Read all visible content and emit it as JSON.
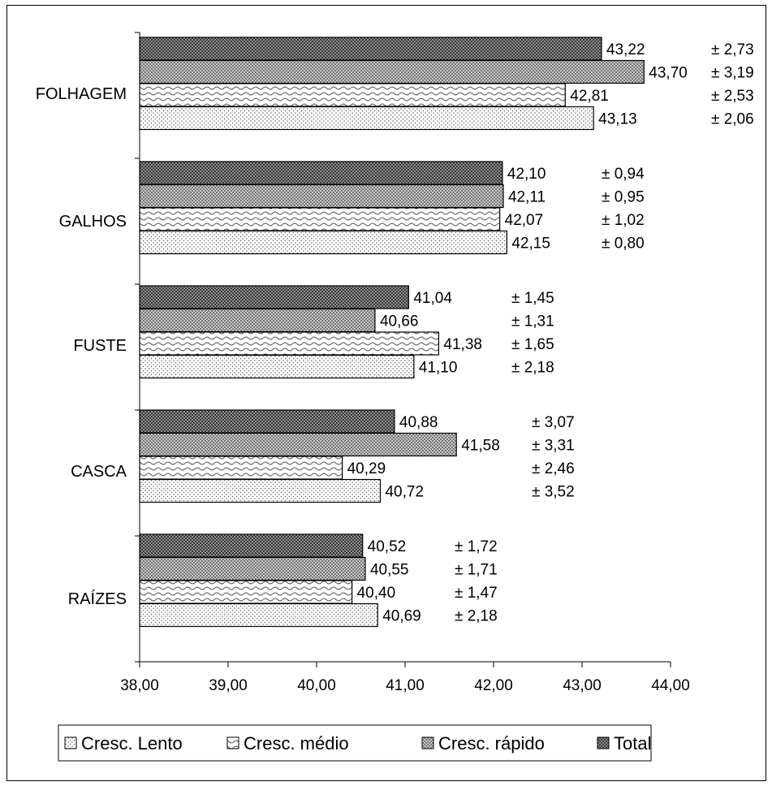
{
  "chart_data": {
    "type": "bar",
    "orientation": "horizontal",
    "title": "",
    "xlabel": "",
    "ylabel": "",
    "xlim": [
      38,
      44
    ],
    "x_ticks": [
      "38,00",
      "39,00",
      "40,00",
      "41,00",
      "42,00",
      "43,00",
      "44,00"
    ],
    "categories": [
      "FOLHAGEM",
      "GALHOS",
      "FUSTE",
      "CASCA",
      "RAÍZES"
    ],
    "series": [
      {
        "name": "Total",
        "values": [
          43.22,
          42.1,
          41.04,
          40.88,
          40.52
        ],
        "labels": [
          "43,22",
          "42,10",
          "41,04",
          "40,88",
          "40,52"
        ],
        "errors": [
          "± 2,73",
          "± 0,94",
          "± 1,45",
          "± 3,07",
          "± 1,72"
        ],
        "pattern": "dark-checker"
      },
      {
        "name": "Cresc. rápido",
        "values": [
          43.7,
          42.11,
          40.66,
          41.58,
          40.55
        ],
        "labels": [
          "43,70",
          "42,11",
          "40,66",
          "41,58",
          "40,55"
        ],
        "errors": [
          "± 3,19",
          "± 0,95",
          "± 1,31",
          "± 3,31",
          "± 1,71"
        ],
        "pattern": "gray-checker"
      },
      {
        "name": "Cresc. médio",
        "values": [
          42.81,
          42.07,
          41.38,
          40.29,
          40.4
        ],
        "labels": [
          "42,81",
          "42,07",
          "41,38",
          "40,29",
          "40,40"
        ],
        "errors": [
          "± 2,53",
          "± 1,02",
          "± 1,65",
          "± 2,46",
          "± 1,47"
        ],
        "pattern": "wave"
      },
      {
        "name": "Cresc. Lento",
        "values": [
          43.13,
          42.15,
          41.1,
          40.72,
          40.69
        ],
        "labels": [
          "43,13",
          "42,15",
          "41,10",
          "40,72",
          "40,69"
        ],
        "errors": [
          "± 2,06",
          "± 0,80",
          "± 2,18",
          "± 3,52",
          "± 2,18"
        ],
        "pattern": "dots"
      }
    ],
    "legend": {
      "placement": "bottom",
      "order": [
        "Cresc. Lento",
        "Cresc. médio",
        "Cresc. rápido",
        "Total"
      ]
    },
    "grid": false
  }
}
